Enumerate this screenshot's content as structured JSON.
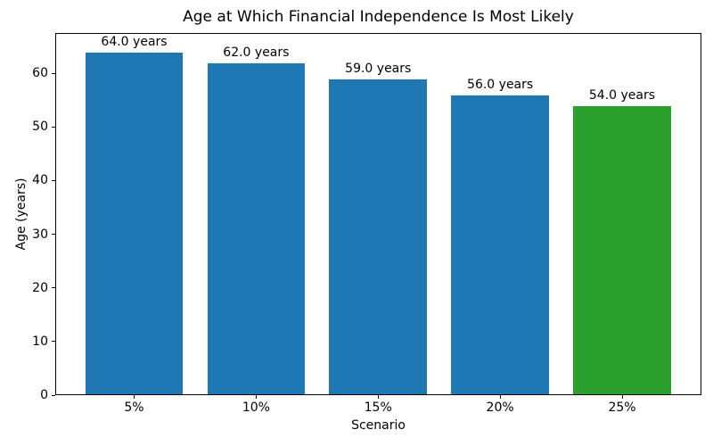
{
  "chart_data": {
    "type": "bar",
    "title": "Age at Which Financial Independence Is Most Likely",
    "xlabel": "Scenario",
    "ylabel": "Age (years)",
    "categories": [
      "5%",
      "10%",
      "15%",
      "20%",
      "25%"
    ],
    "values": [
      64.0,
      62.0,
      59.0,
      56.0,
      54.0
    ],
    "bar_labels": [
      "64.0 years",
      "62.0 years",
      "59.0 years",
      "56.0 years",
      "54.0 years"
    ],
    "bar_colors": [
      "#1f77b4",
      "#1f77b4",
      "#1f77b4",
      "#1f77b4",
      "#2ca02c"
    ],
    "yticks": [
      0,
      10,
      20,
      30,
      40,
      50,
      60
    ],
    "ylim": [
      0,
      67.5
    ],
    "grid": false,
    "legend": "none",
    "background_color": "#ffffff",
    "text_color": "#000000"
  }
}
